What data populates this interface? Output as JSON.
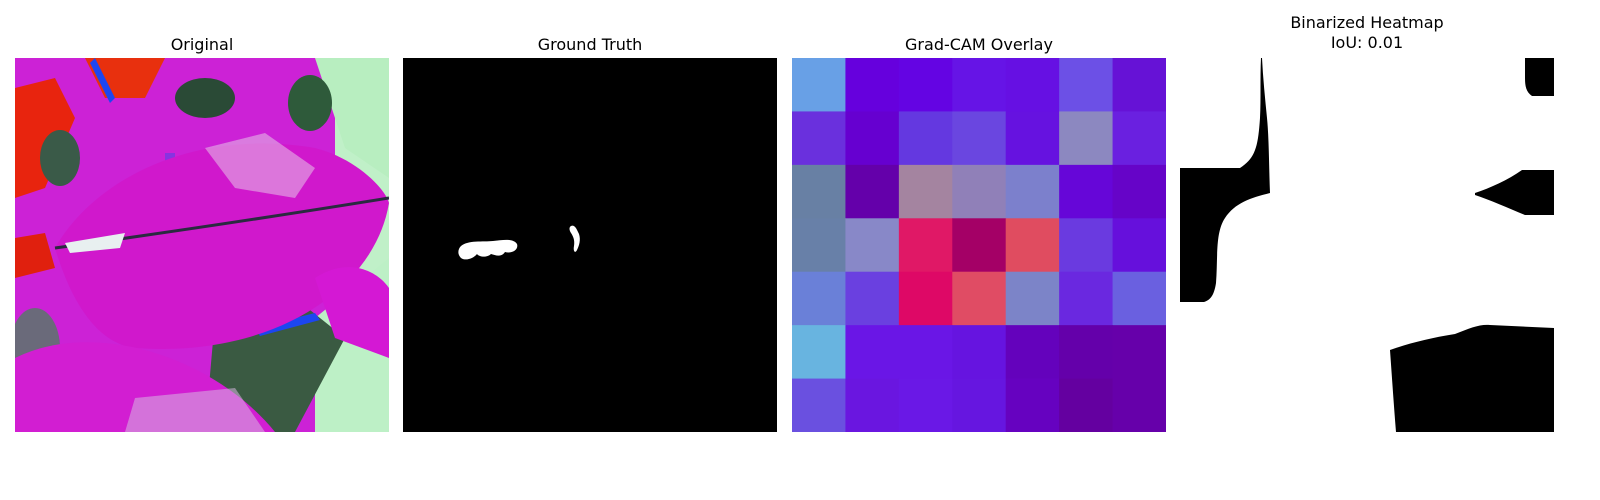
{
  "panels": [
    {
      "title": "Original"
    },
    {
      "title": "Ground Truth"
    },
    {
      "title": "Grad-CAM Overlay"
    },
    {
      "title": "Binarized Heatmap",
      "subtitle": "IoU: 0.01"
    }
  ],
  "gradcam_grid": {
    "rows": 7,
    "cols": 7,
    "colors": [
      [
        "#68a0e6",
        "#6600dd",
        "#6404e3",
        "#6614e6",
        "#6610e3",
        "#6c50e6",
        "#6612d6"
      ],
      [
        "#6a30dd",
        "#6600d0",
        "#6438e0",
        "#6a46e0",
        "#6612e0",
        "#8c88c0",
        "#6a20e0"
      ],
      [
        "#6880a4",
        "#6400aa",
        "#a484a0",
        "#9080b8",
        "#7c80cc",
        "#6606d8",
        "#6604c8"
      ],
      [
        "#6880a8",
        "#8888c8",
        "#e01866",
        "#a40066",
        "#e04c60",
        "#6a3ae0",
        "#6610dc"
      ],
      [
        "#6a80d8",
        "#6a40e0",
        "#de0866",
        "#e04c64",
        "#7c84c8",
        "#6a28e0",
        "#6a60e0"
      ],
      [
        "#68b4e0",
        "#6a16e6",
        "#6a16e6",
        "#6614e0",
        "#6402bc",
        "#6400aa",
        "#6600aa"
      ],
      [
        "#6a50e0",
        "#6a16e0",
        "#6a18e6",
        "#6616e0",
        "#6602c0",
        "#6400a0",
        "#6600aa"
      ]
    ]
  }
}
